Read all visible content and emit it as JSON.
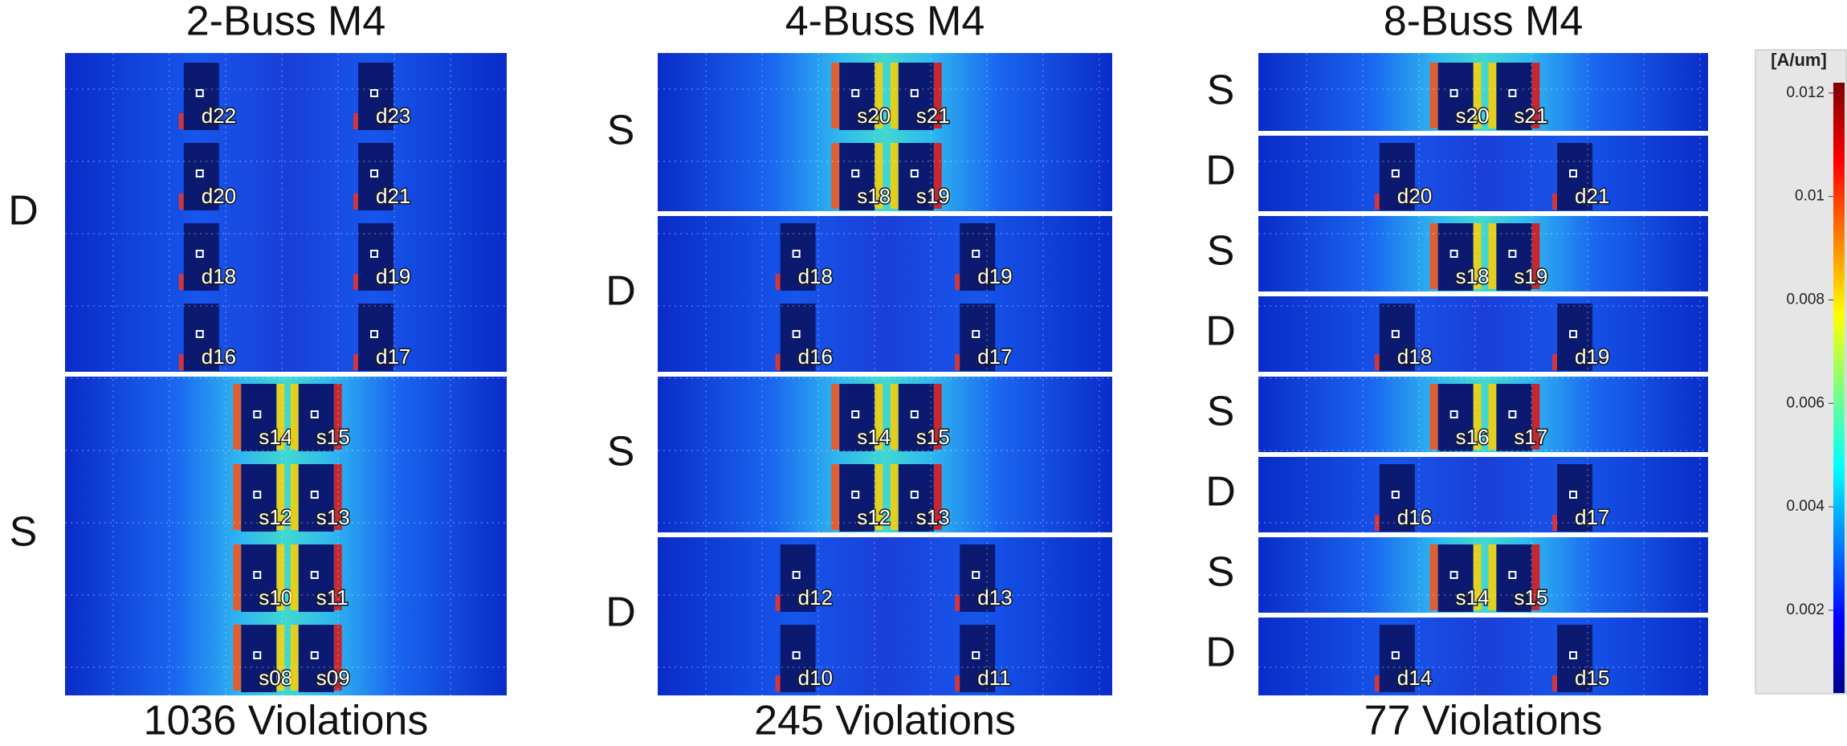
{
  "panels": [
    {
      "title": "2-Buss M4",
      "footer": "1036 Violations",
      "sections": [
        {
          "label": "D",
          "rows": [
            [
              "d22",
              "d23"
            ],
            [
              "d20",
              "d21"
            ],
            [
              "d18",
              "d19"
            ],
            [
              "d16",
              "d17"
            ]
          ]
        },
        {
          "label": "S",
          "rows": [
            [
              "s14",
              "s15"
            ],
            [
              "s12",
              "s13"
            ],
            [
              "s10",
              "s11"
            ],
            [
              "s08",
              "s09"
            ]
          ]
        }
      ]
    },
    {
      "title": "4-Buss M4",
      "footer": "245 Violations",
      "sections": [
        {
          "label": "S",
          "rows": [
            [
              "s20",
              "s21"
            ],
            [
              "s18",
              "s19"
            ]
          ]
        },
        {
          "label": "D",
          "rows": [
            [
              "d18",
              "d19"
            ],
            [
              "d16",
              "d17"
            ]
          ]
        },
        {
          "label": "S",
          "rows": [
            [
              "s14",
              "s15"
            ],
            [
              "s12",
              "s13"
            ]
          ]
        },
        {
          "label": "D",
          "rows": [
            [
              "d12",
              "d13"
            ],
            [
              "d10",
              "d11"
            ]
          ]
        }
      ]
    },
    {
      "title": "8-Buss M4",
      "footer": "77 Violations",
      "sections": [
        {
          "label": "S",
          "rows": [
            [
              "s20",
              "s21"
            ]
          ]
        },
        {
          "label": "D",
          "rows": [
            [
              "d20",
              "d21"
            ]
          ]
        },
        {
          "label": "S",
          "rows": [
            [
              "s18",
              "s19"
            ]
          ]
        },
        {
          "label": "D",
          "rows": [
            [
              "d18",
              "d19"
            ]
          ]
        },
        {
          "label": "S",
          "rows": [
            [
              "s16",
              "s17"
            ]
          ]
        },
        {
          "label": "D",
          "rows": [
            [
              "d16",
              "d17"
            ]
          ]
        },
        {
          "label": "S",
          "rows": [
            [
              "s14",
              "s15"
            ]
          ]
        },
        {
          "label": "D",
          "rows": [
            [
              "d14",
              "d15"
            ]
          ]
        }
      ]
    }
  ],
  "colorbar": {
    "title": "[A/um]",
    "lim": [
      0.0004,
      0.0122
    ],
    "ticks": [
      0.012,
      0.01,
      0.008,
      0.006,
      0.004,
      0.002
    ]
  }
}
